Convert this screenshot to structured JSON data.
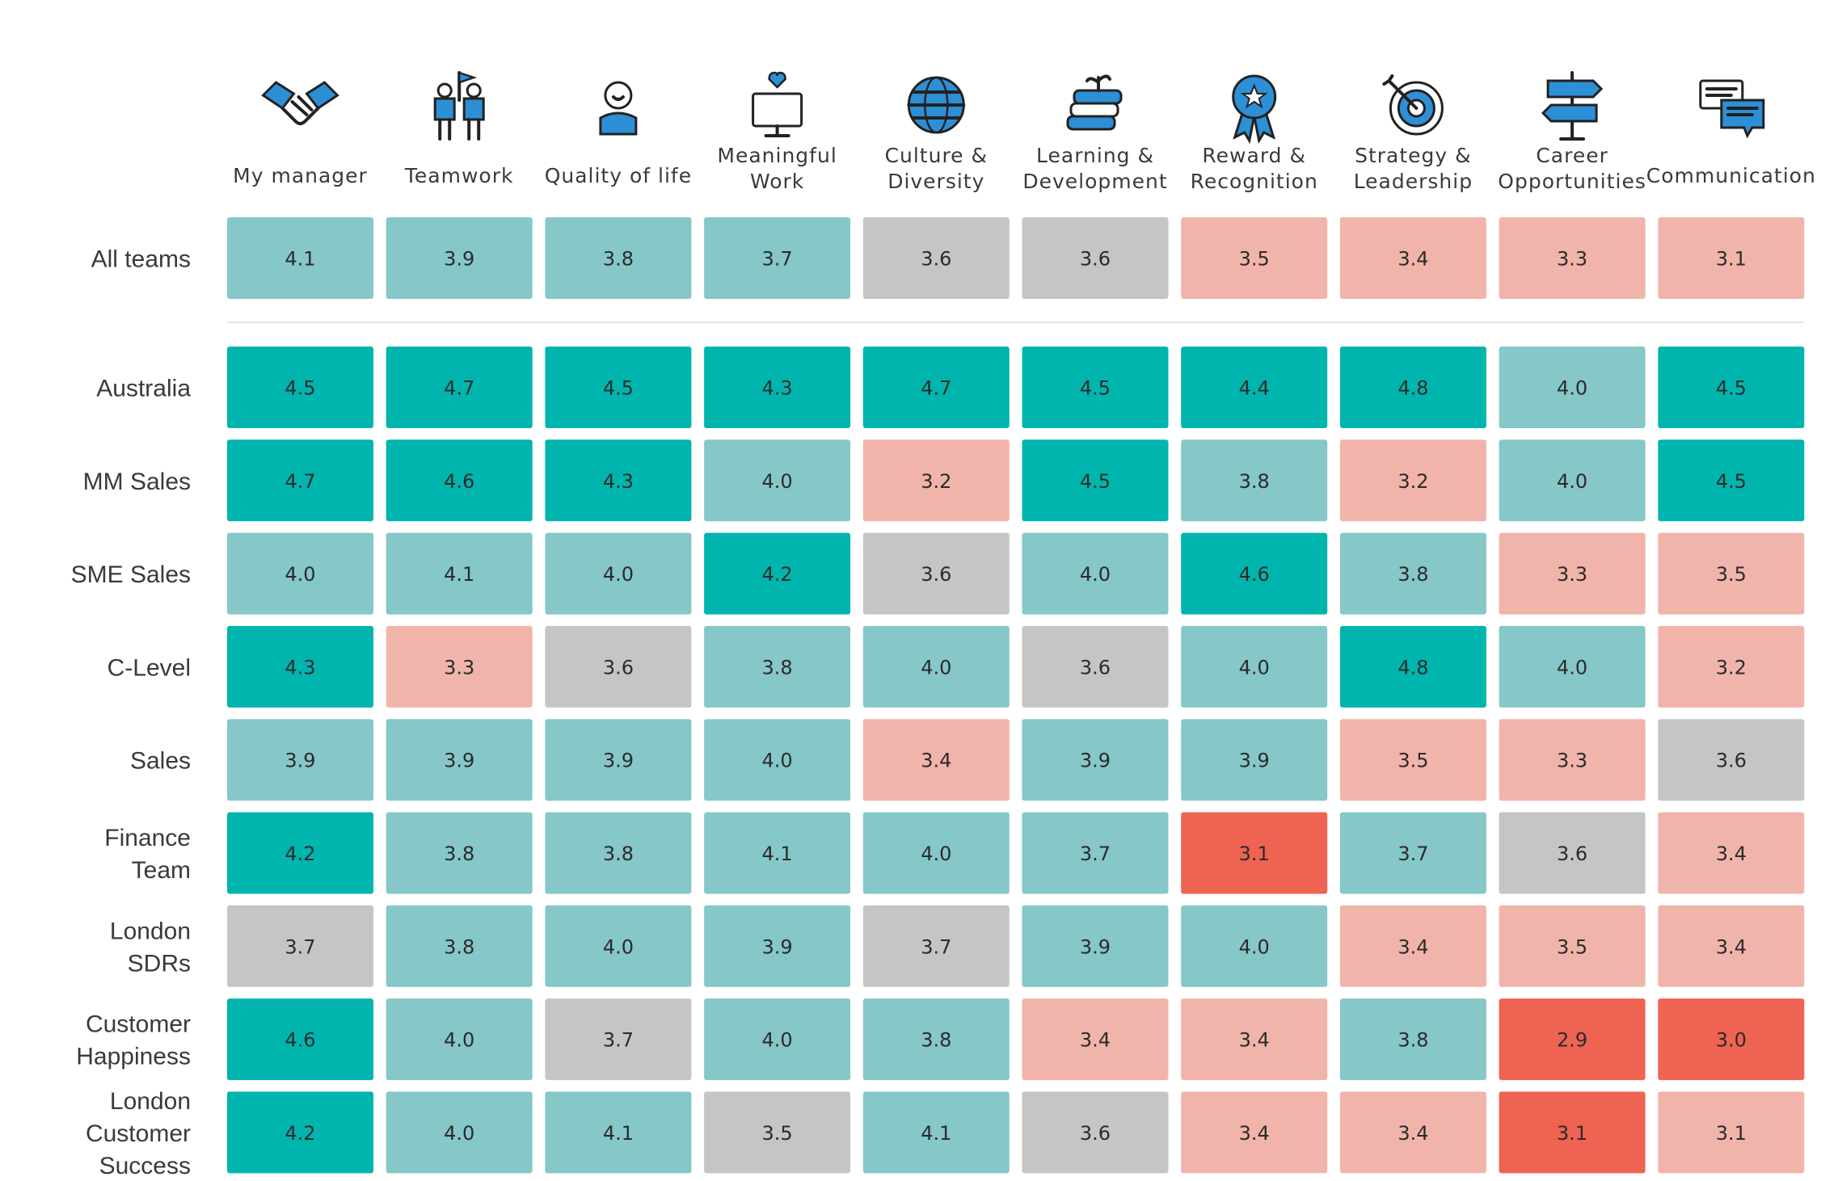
{
  "chart_data": {
    "type": "heatmap",
    "columns": [
      {
        "label": [
          "My manager"
        ],
        "icon": "handshake-icon"
      },
      {
        "label": [
          "Teamwork"
        ],
        "icon": "team-flag-icon"
      },
      {
        "label": [
          "Quality of life"
        ],
        "icon": "happy-person-icon"
      },
      {
        "label": [
          "Meaningful",
          "Work"
        ],
        "icon": "monitor-heart-icon"
      },
      {
        "label": [
          "Culture &",
          "Diversity"
        ],
        "icon": "globe-icon"
      },
      {
        "label": [
          "Learning &",
          "Development"
        ],
        "icon": "books-plant-icon"
      },
      {
        "label": [
          "Reward &",
          "Recognition"
        ],
        "icon": "medal-icon"
      },
      {
        "label": [
          "Strategy &",
          "Leadership"
        ],
        "icon": "target-icon"
      },
      {
        "label": [
          "Career",
          "Opportunities"
        ],
        "icon": "signpost-icon"
      },
      {
        "label": [
          "Communication"
        ],
        "icon": "chat-bubbles-icon"
      }
    ],
    "summary_row": {
      "label": [
        "All teams"
      ],
      "values": [
        4.1,
        3.9,
        3.8,
        3.7,
        3.6,
        3.6,
        3.5,
        3.4,
        3.3,
        3.1
      ]
    },
    "rows": [
      {
        "label": [
          "Australia"
        ],
        "values": [
          4.5,
          4.7,
          4.5,
          4.3,
          4.7,
          4.5,
          4.4,
          4.8,
          4.0,
          4.5
        ]
      },
      {
        "label": [
          "MM Sales"
        ],
        "values": [
          4.7,
          4.6,
          4.3,
          4.0,
          3.2,
          4.5,
          3.8,
          3.2,
          4.0,
          4.5
        ]
      },
      {
        "label": [
          "SME Sales"
        ],
        "values": [
          4.0,
          4.1,
          4.0,
          4.2,
          3.6,
          4.0,
          4.6,
          3.8,
          3.3,
          3.5
        ]
      },
      {
        "label": [
          "C-Level"
        ],
        "values": [
          4.3,
          3.3,
          3.6,
          3.8,
          4.0,
          3.6,
          4.0,
          4.8,
          4.0,
          3.2
        ]
      },
      {
        "label": [
          "Sales"
        ],
        "values": [
          3.9,
          3.9,
          3.9,
          4.0,
          3.4,
          3.9,
          3.9,
          3.5,
          3.3,
          3.6
        ]
      },
      {
        "label": [
          "Finance",
          "Team"
        ],
        "values": [
          4.2,
          3.8,
          3.8,
          4.1,
          4.0,
          3.7,
          3.1,
          3.7,
          3.6,
          3.4
        ]
      },
      {
        "label": [
          "London",
          "SDRs"
        ],
        "values": [
          3.7,
          3.8,
          4.0,
          3.9,
          3.7,
          3.9,
          4.0,
          3.4,
          3.5,
          3.4
        ]
      },
      {
        "label": [
          "Customer",
          "Happiness"
        ],
        "values": [
          4.6,
          4.0,
          3.7,
          4.0,
          3.8,
          3.4,
          3.4,
          3.8,
          2.9,
          3.0
        ]
      },
      {
        "label": [
          "London",
          "Customer",
          "Success"
        ],
        "values": [
          4.2,
          4.0,
          4.1,
          3.5,
          4.1,
          3.6,
          3.4,
          3.4,
          3.1,
          3.1
        ]
      }
    ],
    "color_scale": [
      {
        "min": 4.2,
        "color": "#00b5ad"
      },
      {
        "min": 3.7,
        "color": "#86c7c8"
      },
      {
        "min": 3.6,
        "color": "#c5c5c5"
      },
      {
        "min": 3.2,
        "color": "#f1b4ab"
      },
      {
        "min": 0,
        "color": "#ee6352"
      }
    ],
    "cell_overrides": {
      "summary": {
        "3": "#86c7c8",
        "4": "#c5c5c5",
        "5": "#c5c5c5",
        "6": "#f1b4ab",
        "7": "#f1b4ab",
        "8": "#f1b4ab",
        "9": "#f1b4ab"
      },
      "rows": {
        "0": {
          "8": "#86c7c8"
        },
        "2": {
          "4": "#c5c5c5",
          "8": "#f1b4ab",
          "9": "#f1b4ab"
        },
        "3": {
          "1": "#f1b4ab",
          "2": "#c5c5c5",
          "5": "#c5c5c5",
          "9": "#f1b4ab"
        },
        "4": {
          "4": "#f1b4ab",
          "7": "#f1b4ab",
          "8": "#f1b4ab",
          "9": "#c5c5c5"
        },
        "5": {
          "6": "#ee6352",
          "7": "#86c7c8",
          "8": "#c5c5c5",
          "9": "#f1b4ab"
        },
        "6": {
          "0": "#c5c5c5",
          "4": "#c5c5c5",
          "7": "#f1b4ab",
          "8": "#f1b4ab",
          "9": "#f1b4ab"
        },
        "7": {
          "2": "#c5c5c5",
          "5": "#f1b4ab",
          "6": "#f1b4ab",
          "8": "#ee6352",
          "9": "#ee6352"
        },
        "8": {
          "3": "#c5c5c5",
          "5": "#c5c5c5",
          "6": "#f1b4ab",
          "7": "#f1b4ab",
          "8": "#ee6352",
          "9": "#f1b4ab"
        }
      }
    }
  },
  "colors": {
    "icon_blue": "#2d8fd5",
    "icon_dark": "#222222",
    "divider": "#e6e6e6"
  }
}
